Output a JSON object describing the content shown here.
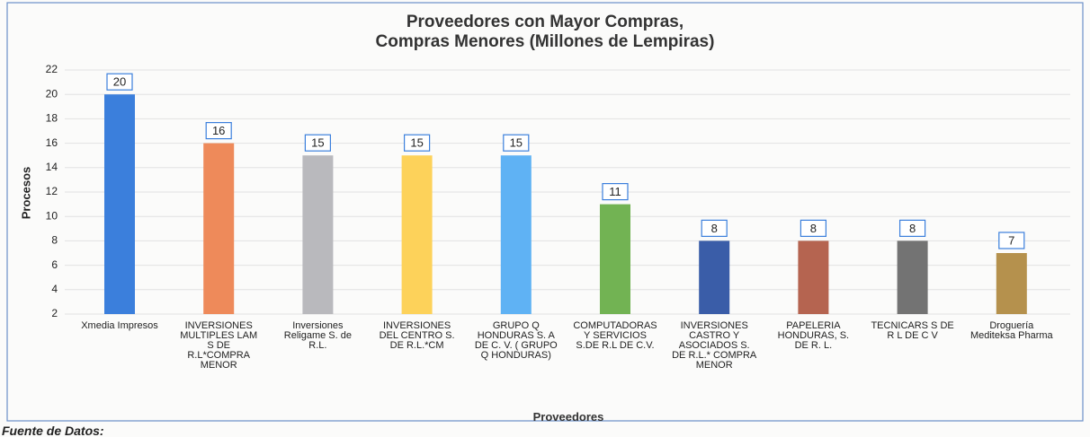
{
  "chart_data": {
    "type": "bar",
    "title": "Proveedores con Mayor Compras,\nCompras Menores (Millones de Lempiras)",
    "x_label": "Proveedores",
    "y_label": "Procesos",
    "categories": [
      "Xmedia Impresos",
      "INVERSIONES MULTIPLES LAM S DE R.L*COMPRA MENOR",
      "Inversiones Religame S. de R.L.",
      "INVERSIONES DEL CENTRO S. DE R.L.*CM",
      "GRUPO Q HONDURAS S. A DE C. V. ( GRUPO Q HONDURAS)",
      "COMPUTADORAS Y SERVICIOS S.DE R.L DE C.V.",
      "INVERSIONES CASTRO Y ASOCIADOS S. DE R.L.* COMPRA MENOR",
      "PAPELERIA HONDURAS, S. DE R. L.",
      "TECNICARS S DE R L DE C V",
      "Droguería Mediteksa Pharma"
    ],
    "values": [
      20,
      16,
      15,
      15,
      15,
      11,
      8,
      8,
      8,
      7
    ],
    "colors": [
      "#3b7fdc",
      "#ee8a5a",
      "#b9b9bd",
      "#fdd25a",
      "#5fb2f4",
      "#72b353",
      "#3a5da8",
      "#b56450",
      "#737373",
      "#b5914d"
    ],
    "ylim": [
      2,
      22
    ],
    "yticks": [
      2,
      4,
      6,
      8,
      10,
      12,
      14,
      16,
      18,
      20,
      22
    ],
    "grid": true,
    "source": "Fuente de Datos:"
  }
}
